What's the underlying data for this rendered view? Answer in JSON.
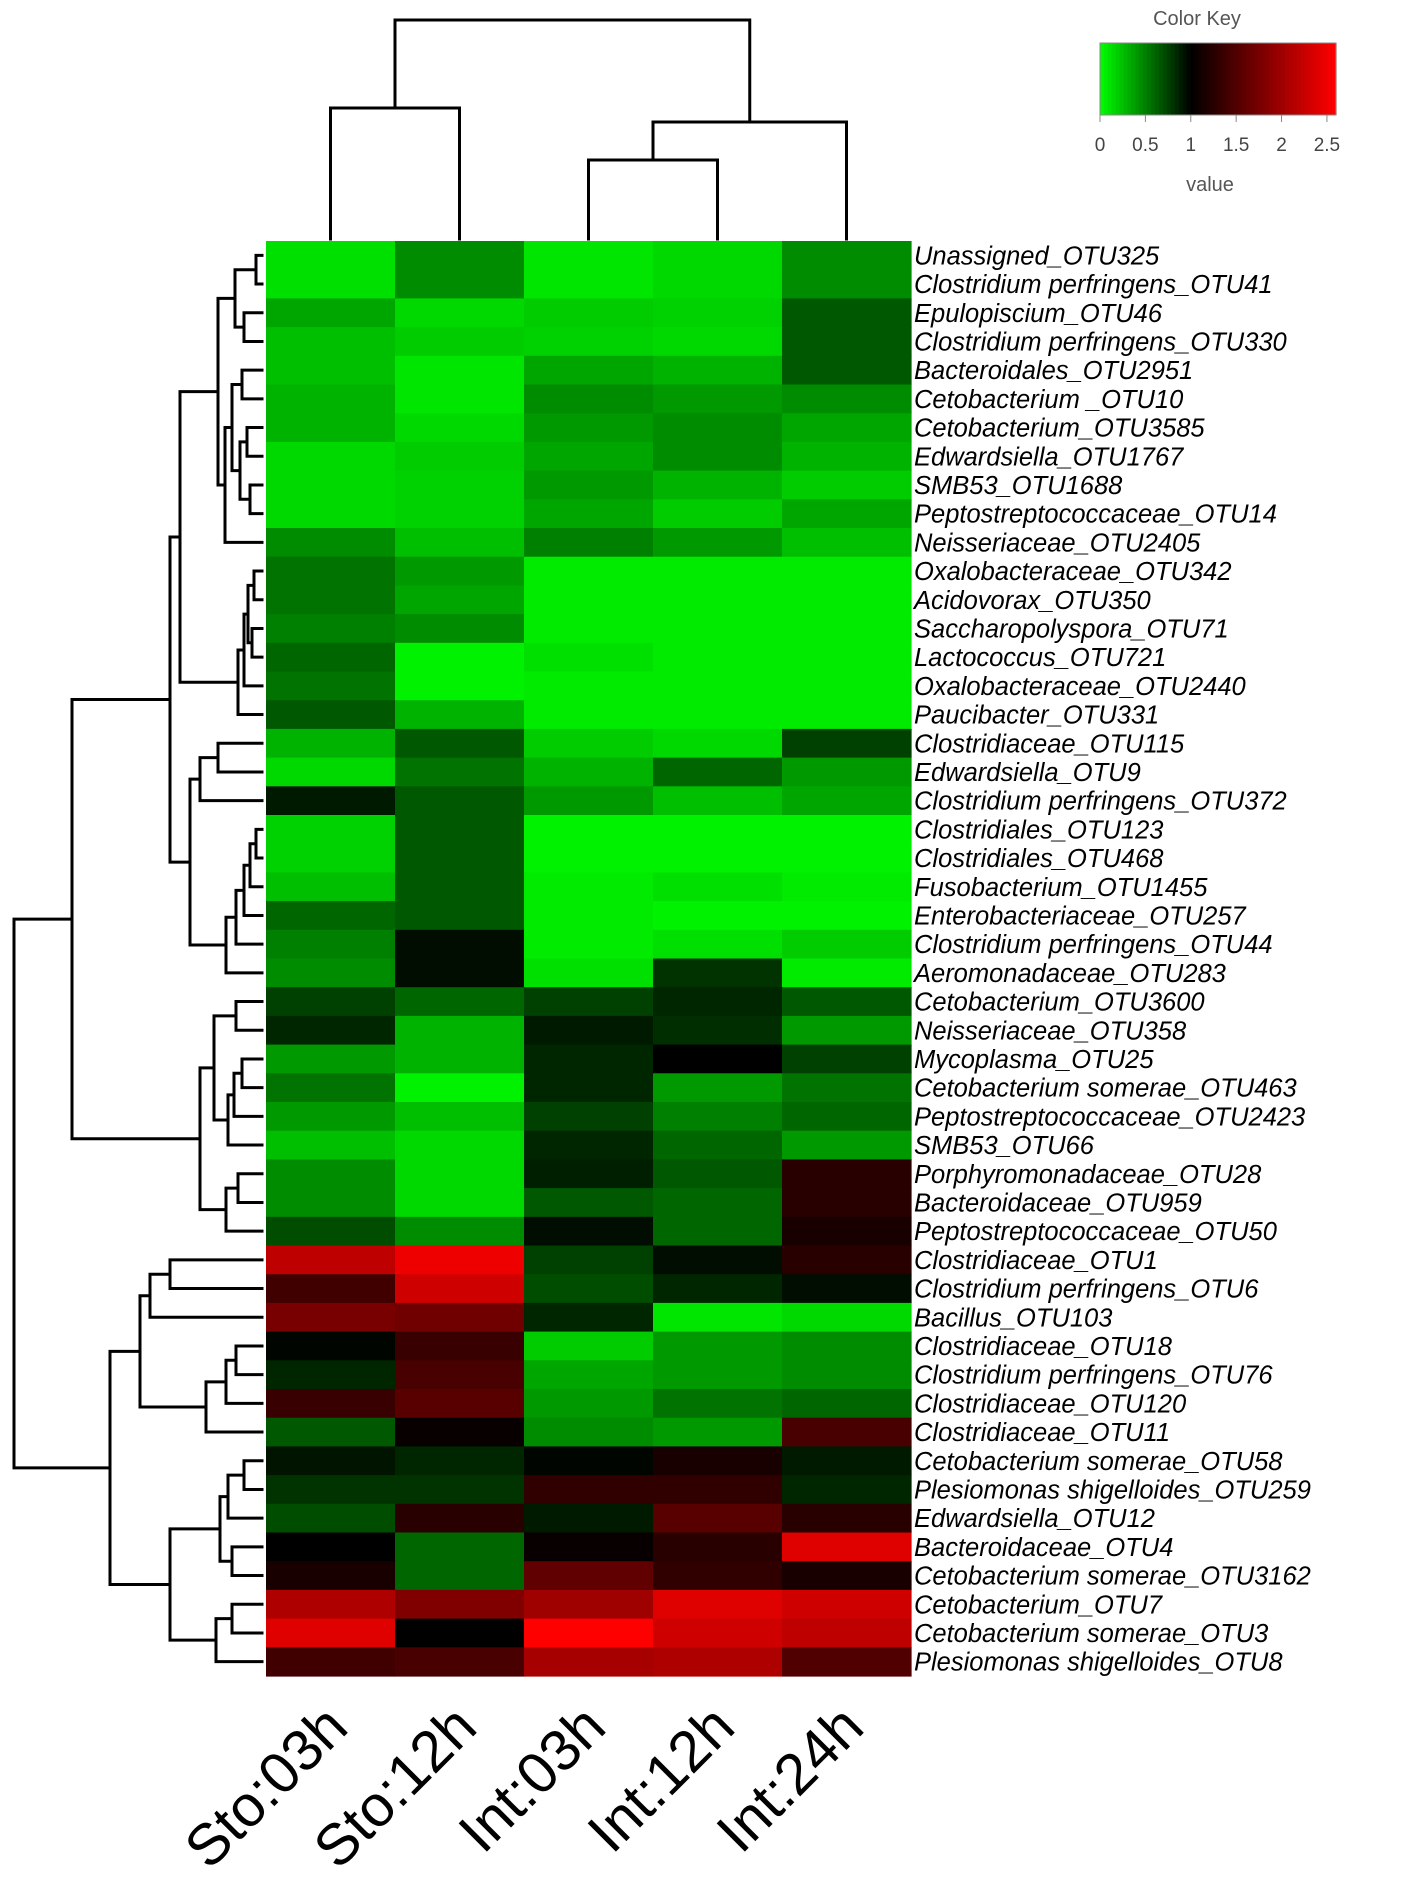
{
  "chart_data": {
    "type": "heatmap",
    "title": "",
    "columns": [
      "Sto:03h",
      "Sto:12h",
      "Int:03h",
      "Int:12h",
      "Int:24h"
    ],
    "rows": [
      "Unassigned_OTU325",
      "Clostridium perfringens_OTU41",
      "Epulopiscium_OTU46",
      "Clostridium perfringens_OTU330",
      "Bacteroidales_OTU2951",
      "Cetobacterium _OTU10",
      "Cetobacterium_OTU3585",
      "Edwardsiella_OTU1767",
      "SMB53_OTU1688",
      "Peptostreptococcaceae_OTU14",
      "Neisseriaceae_OTU2405",
      "Oxalobacteraceae_OTU342",
      "Acidovorax_OTU350",
      "Saccharopolyspora_OTU71",
      "Lactococcus_OTU721",
      "Oxalobacteraceae_OTU2440",
      "Paucibacter_OTU331",
      "Clostridiaceae_OTU115",
      "Edwardsiella_OTU9",
      "Clostridium perfringens_OTU372",
      "Clostridiales_OTU123",
      "Clostridiales_OTU468",
      "Fusobacterium_OTU1455",
      "Enterobacteriaceae_OTU257",
      "Clostridium perfringens_OTU44",
      "Aeromonadaceae_OTU283",
      "Cetobacterium_OTU3600",
      "Neisseriaceae_OTU358",
      "Mycoplasma_OTU25",
      "Cetobacterium somerae_OTU463",
      "Peptostreptococcaceae_OTU2423",
      "SMB53_OTU66",
      "Porphyromonadaceae_OTU28",
      "Bacteroidaceae_OTU959",
      "Peptostreptococcaceae_OTU50",
      "Clostridiaceae_OTU1",
      "Clostridium perfringens_OTU6",
      "Bacillus_OTU103",
      "Clostridiaceae_OTU18",
      "Clostridium perfringens_OTU76",
      "Clostridiaceae_OTU120",
      "Clostridiaceae_OTU11",
      "Cetobacterium somerae_OTU58",
      "Plesiomonas shigelloides_OTU259",
      "Edwardsiella_OTU12",
      "Bacteroidaceae_OTU4",
      "Cetobacterium somerae_OTU3162",
      "Cetobacterium_OTU7",
      "Cetobacterium somerae_OTU3",
      "Plesiomonas shigelloides_OTU8"
    ],
    "values": [
      [
        0.12,
        0.45,
        0.1,
        0.15,
        0.45
      ],
      [
        0.12,
        0.45,
        0.1,
        0.15,
        0.45
      ],
      [
        0.35,
        0.15,
        0.2,
        0.18,
        0.65
      ],
      [
        0.25,
        0.2,
        0.18,
        0.15,
        0.65
      ],
      [
        0.25,
        0.1,
        0.35,
        0.3,
        0.65
      ],
      [
        0.3,
        0.1,
        0.45,
        0.4,
        0.45
      ],
      [
        0.3,
        0.15,
        0.4,
        0.45,
        0.35
      ],
      [
        0.15,
        0.2,
        0.35,
        0.45,
        0.3
      ],
      [
        0.15,
        0.18,
        0.4,
        0.3,
        0.2
      ],
      [
        0.15,
        0.18,
        0.35,
        0.2,
        0.35
      ],
      [
        0.45,
        0.25,
        0.5,
        0.4,
        0.25
      ],
      [
        0.55,
        0.4,
        0.08,
        0.08,
        0.08
      ],
      [
        0.55,
        0.35,
        0.08,
        0.08,
        0.08
      ],
      [
        0.5,
        0.45,
        0.08,
        0.08,
        0.08
      ],
      [
        0.6,
        0.05,
        0.12,
        0.08,
        0.08
      ],
      [
        0.55,
        0.05,
        0.08,
        0.08,
        0.08
      ],
      [
        0.65,
        0.3,
        0.08,
        0.08,
        0.08
      ],
      [
        0.3,
        0.65,
        0.2,
        0.15,
        0.75
      ],
      [
        0.15,
        0.55,
        0.3,
        0.6,
        0.4
      ],
      [
        0.9,
        0.65,
        0.4,
        0.25,
        0.35
      ],
      [
        0.18,
        0.65,
        0.05,
        0.05,
        0.05
      ],
      [
        0.18,
        0.65,
        0.05,
        0.05,
        0.05
      ],
      [
        0.25,
        0.65,
        0.08,
        0.12,
        0.08
      ],
      [
        0.6,
        0.65,
        0.08,
        0.05,
        0.05
      ],
      [
        0.5,
        0.95,
        0.08,
        0.12,
        0.2
      ],
      [
        0.45,
        0.95,
        0.12,
        0.8,
        0.08
      ],
      [
        0.75,
        0.6,
        0.75,
        0.85,
        0.65
      ],
      [
        0.85,
        0.3,
        0.9,
        0.82,
        0.4
      ],
      [
        0.4,
        0.3,
        0.85,
        1.0,
        0.75
      ],
      [
        0.55,
        0.05,
        0.85,
        0.4,
        0.55
      ],
      [
        0.4,
        0.25,
        0.75,
        0.5,
        0.6
      ],
      [
        0.25,
        0.15,
        0.85,
        0.6,
        0.4
      ],
      [
        0.45,
        0.15,
        0.88,
        0.65,
        1.25
      ],
      [
        0.45,
        0.15,
        0.65,
        0.6,
        1.25
      ],
      [
        0.7,
        0.45,
        0.95,
        0.6,
        1.15
      ],
      [
        2.2,
        2.5,
        0.75,
        0.95,
        1.25
      ],
      [
        1.4,
        2.3,
        0.7,
        0.85,
        0.95
      ],
      [
        1.75,
        1.7,
        0.85,
        0.1,
        0.15
      ],
      [
        0.98,
        1.35,
        0.2,
        0.4,
        0.45
      ],
      [
        0.85,
        1.45,
        0.35,
        0.4,
        0.45
      ],
      [
        1.35,
        1.55,
        0.4,
        0.55,
        0.6
      ],
      [
        0.65,
        1.05,
        0.45,
        0.4,
        1.45
      ],
      [
        0.92,
        0.85,
        0.98,
        1.15,
        0.9
      ],
      [
        0.8,
        0.8,
        1.3,
        1.3,
        0.85
      ],
      [
        0.7,
        1.25,
        0.9,
        1.55,
        1.25
      ],
      [
        1.0,
        0.6,
        1.05,
        1.25,
        2.4
      ],
      [
        1.15,
        0.6,
        1.6,
        1.3,
        1.15
      ],
      [
        2.1,
        1.8,
        2.0,
        2.4,
        2.3
      ],
      [
        2.4,
        1.0,
        2.6,
        2.3,
        2.2
      ],
      [
        1.4,
        1.45,
        2.05,
        2.1,
        1.5
      ]
    ],
    "color_key": {
      "title": "Color Key",
      "xlabel": "value",
      "ticks": [
        "0",
        "0.5",
        "1",
        "1.5",
        "2",
        "2.5"
      ],
      "tick_values": [
        0,
        0.5,
        1,
        1.5,
        2,
        2.5
      ],
      "range": [
        0,
        2.6
      ],
      "colors": {
        "low": "#00ff00",
        "mid": "#000000",
        "high": "#ff0000"
      },
      "mid_value": 1.0
    },
    "grid": false
  }
}
